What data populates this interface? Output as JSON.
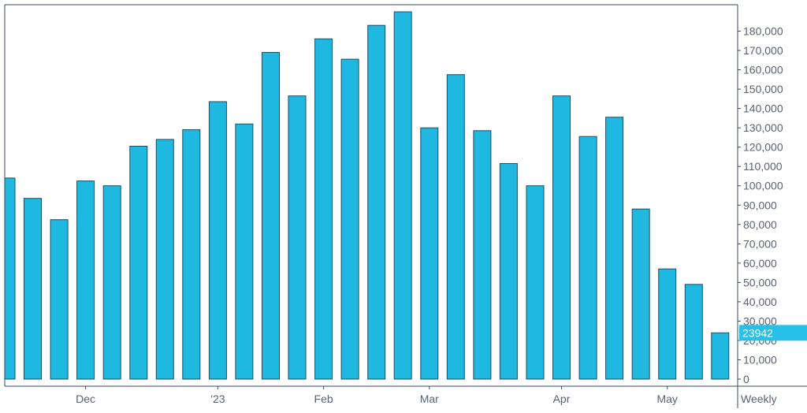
{
  "chart_data": {
    "type": "bar",
    "bar_color": "#1fb8e0",
    "bar_stroke": "#1b4f63",
    "axis_color": "#3c4a5c",
    "last_value_tag_color": "#27c0e8",
    "ylim": [
      0,
      190000
    ],
    "y_ticks": [
      {
        "value": 0,
        "label": "0"
      },
      {
        "value": 10000,
        "label": "10,000"
      },
      {
        "value": 20000,
        "label": "20,000"
      },
      {
        "value": 30000,
        "label": "30,000"
      },
      {
        "value": 40000,
        "label": "40,000"
      },
      {
        "value": 50000,
        "label": "50,000"
      },
      {
        "value": 60000,
        "label": "60,000"
      },
      {
        "value": 70000,
        "label": "70,000"
      },
      {
        "value": 80000,
        "label": "80,000"
      },
      {
        "value": 90000,
        "label": "90,000"
      },
      {
        "value": 100000,
        "label": "100,000"
      },
      {
        "value": 110000,
        "label": "110,000"
      },
      {
        "value": 120000,
        "label": "120,000"
      },
      {
        "value": 130000,
        "label": "130,000"
      },
      {
        "value": 140000,
        "label": "140,000"
      },
      {
        "value": 150000,
        "label": "150,000"
      },
      {
        "value": 160000,
        "label": "160,000"
      },
      {
        "value": 170000,
        "label": "170,000"
      },
      {
        "value": 180000,
        "label": "180,000"
      }
    ],
    "values": [
      104000,
      93500,
      82500,
      102500,
      100000,
      120500,
      124000,
      129000,
      143500,
      132000,
      169000,
      146500,
      176000,
      165500,
      183000,
      190000,
      130000,
      157500,
      128500,
      111500,
      100000,
      146500,
      125500,
      135500,
      88000,
      57000,
      49000,
      23942
    ],
    "x_labels": [
      {
        "label": "Dec",
        "bar_index": 3
      },
      {
        "label": "'23",
        "bar_index": 8
      },
      {
        "label": "Feb",
        "bar_index": 12
      },
      {
        "label": "Mar",
        "bar_index": 16
      },
      {
        "label": "Apr",
        "bar_index": 21
      },
      {
        "label": "May",
        "bar_index": 25
      }
    ],
    "period_label": "Weekly",
    "last_value_label": "23942"
  }
}
